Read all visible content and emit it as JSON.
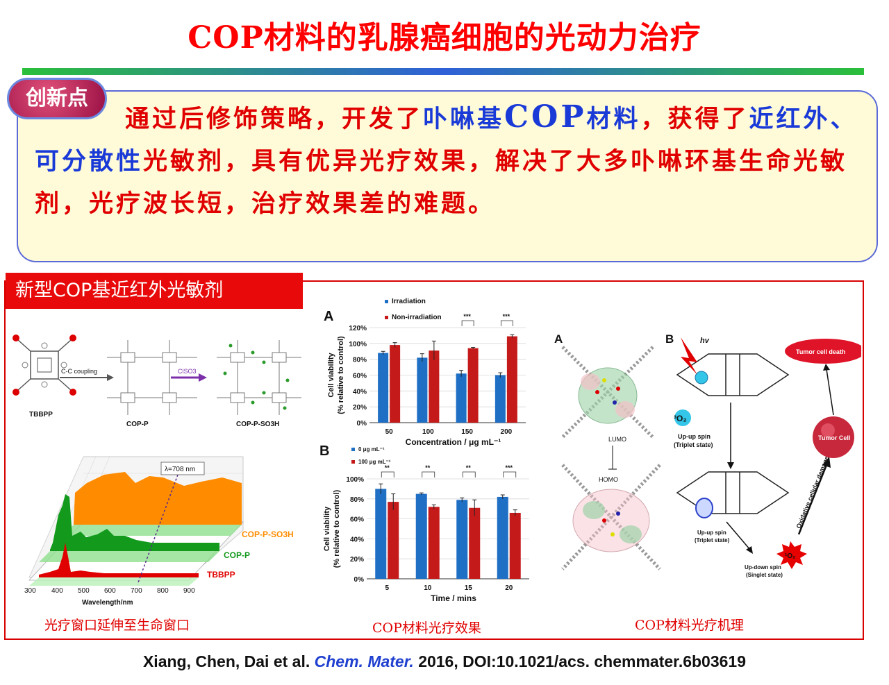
{
  "header": {
    "title": "COP材料的乳腺癌细胞的光动力治疗"
  },
  "innovation": {
    "badge": "创新点",
    "segments": [
      {
        "text": "通过后修饰策略，开发了",
        "color": "red"
      },
      {
        "text": "卟啉基",
        "color": "blue"
      },
      {
        "text": "COP",
        "color": "blue",
        "big": true
      },
      {
        "text": "材料",
        "color": "blue"
      },
      {
        "text": "，获得了",
        "color": "red"
      },
      {
        "text": "近红外、可分散性",
        "color": "blue"
      },
      {
        "text": "光敏剂，具有优异光疗效果，解决了大多卟啉环基生命光敏剂，光疗波长短，治疗效果差的难题。",
        "color": "red"
      }
    ]
  },
  "panel": {
    "tag": "新型COP基近红外光敏剂",
    "synthesis": {
      "labels": [
        "TBBPP",
        "COP-P",
        "COP-P-SO3H"
      ],
      "step1": "C-C coupling",
      "step2": "ClSO3"
    },
    "spectrum": {
      "annotation": "λ=708 nm",
      "series": [
        "COP-P-SO3H",
        "COP-P",
        "TBBPP"
      ],
      "xticks": [
        "300",
        "400",
        "500",
        "600",
        "700",
        "800",
        "900"
      ],
      "xlabel": "Wavelength/nm",
      "colors": {
        "COP-P-SO3H": "#ff8c00",
        "COP-P": "#139a1c",
        "TBBPP": "#e10000"
      }
    },
    "chartA": {
      "letter": "A",
      "legend": [
        "Irradiation",
        "Non-irradiation"
      ],
      "categories": [
        "50",
        "100",
        "150",
        "200"
      ],
      "ylabel1": "Cell viability",
      "ylabel2": "(% relative to control)",
      "xlabel": "Concentration / μg mL⁻¹",
      "yticks": [
        "0%",
        "20%",
        "40%",
        "60%",
        "80%",
        "100%",
        "120%"
      ],
      "sig": [
        "***",
        "***"
      ]
    },
    "chartB": {
      "letter": "B",
      "legend": [
        "0 μg mL⁻¹",
        "100 μg mL⁻¹"
      ],
      "categories": [
        "5",
        "10",
        "15",
        "20"
      ],
      "ylabel1": "Cell viability",
      "ylabel2": "(% relative to control)",
      "xlabel": "Time / mins",
      "yticks": [
        "0%",
        "20%",
        "40%",
        "60%",
        "80%",
        "100%"
      ],
      "sig": [
        "**",
        "**",
        "**",
        "***"
      ]
    },
    "mechanism": {
      "letterA": "A",
      "letterB": "B",
      "lumo": "LUMO",
      "homo": "HOMO",
      "hv": "hv",
      "triplet1": "Up-up spin",
      "triplet1b": "(Triplet state)",
      "triplet2": "Up-up spin",
      "triplet2b": "(Triplet state)",
      "singlet": "Up-down spin",
      "singletb": "(Singlet state)",
      "o2a": "³O₂",
      "o2b": "¹O₂",
      "tumor_cell": "Tumor Cell",
      "tumor_death": "Tumor cell death",
      "damage": "Oxidative cellular damage"
    },
    "captions": [
      "光疗窗口延伸至生命窗口",
      "COP材料光疗效果",
      "COP材料光疗机理"
    ]
  },
  "citation": {
    "authors": "Xiang, Chen, Dai et al.",
    "journal": "Chem. Mater.",
    "rest": "2016, DOI:10.1021/acs. chemmater.6b03619"
  },
  "chart_data": [
    {
      "type": "bar",
      "categories": [
        "50",
        "100",
        "150",
        "200"
      ],
      "series": [
        {
          "name": "Irradiation",
          "values": [
            88,
            82,
            62,
            60
          ],
          "errors": [
            2,
            5,
            4,
            3
          ]
        },
        {
          "name": "Non-irradiation",
          "values": [
            98,
            91,
            94,
            109
          ],
          "errors": [
            3,
            12,
            1,
            2
          ]
        }
      ],
      "xlabel": "Concentration / μg mL⁻¹",
      "ylabel": "Cell viability (% relative to control)",
      "ylim": [
        0,
        120
      ],
      "colors": [
        "#1f6fc5",
        "#c51a1a"
      ]
    },
    {
      "type": "bar",
      "categories": [
        "5",
        "10",
        "15",
        "20"
      ],
      "series": [
        {
          "name": "0 μg mL⁻¹",
          "values": [
            90,
            85,
            79,
            82
          ],
          "errors": [
            5,
            1,
            2,
            2
          ]
        },
        {
          "name": "100 μg mL⁻¹",
          "values": [
            77,
            72,
            71,
            66
          ],
          "errors": [
            8,
            2,
            8,
            3
          ]
        }
      ],
      "xlabel": "Time / mins",
      "ylabel": "Cell viability (% relative to control)",
      "ylim": [
        0,
        100
      ],
      "colors": [
        "#1f6fc5",
        "#c51a1a"
      ]
    }
  ]
}
